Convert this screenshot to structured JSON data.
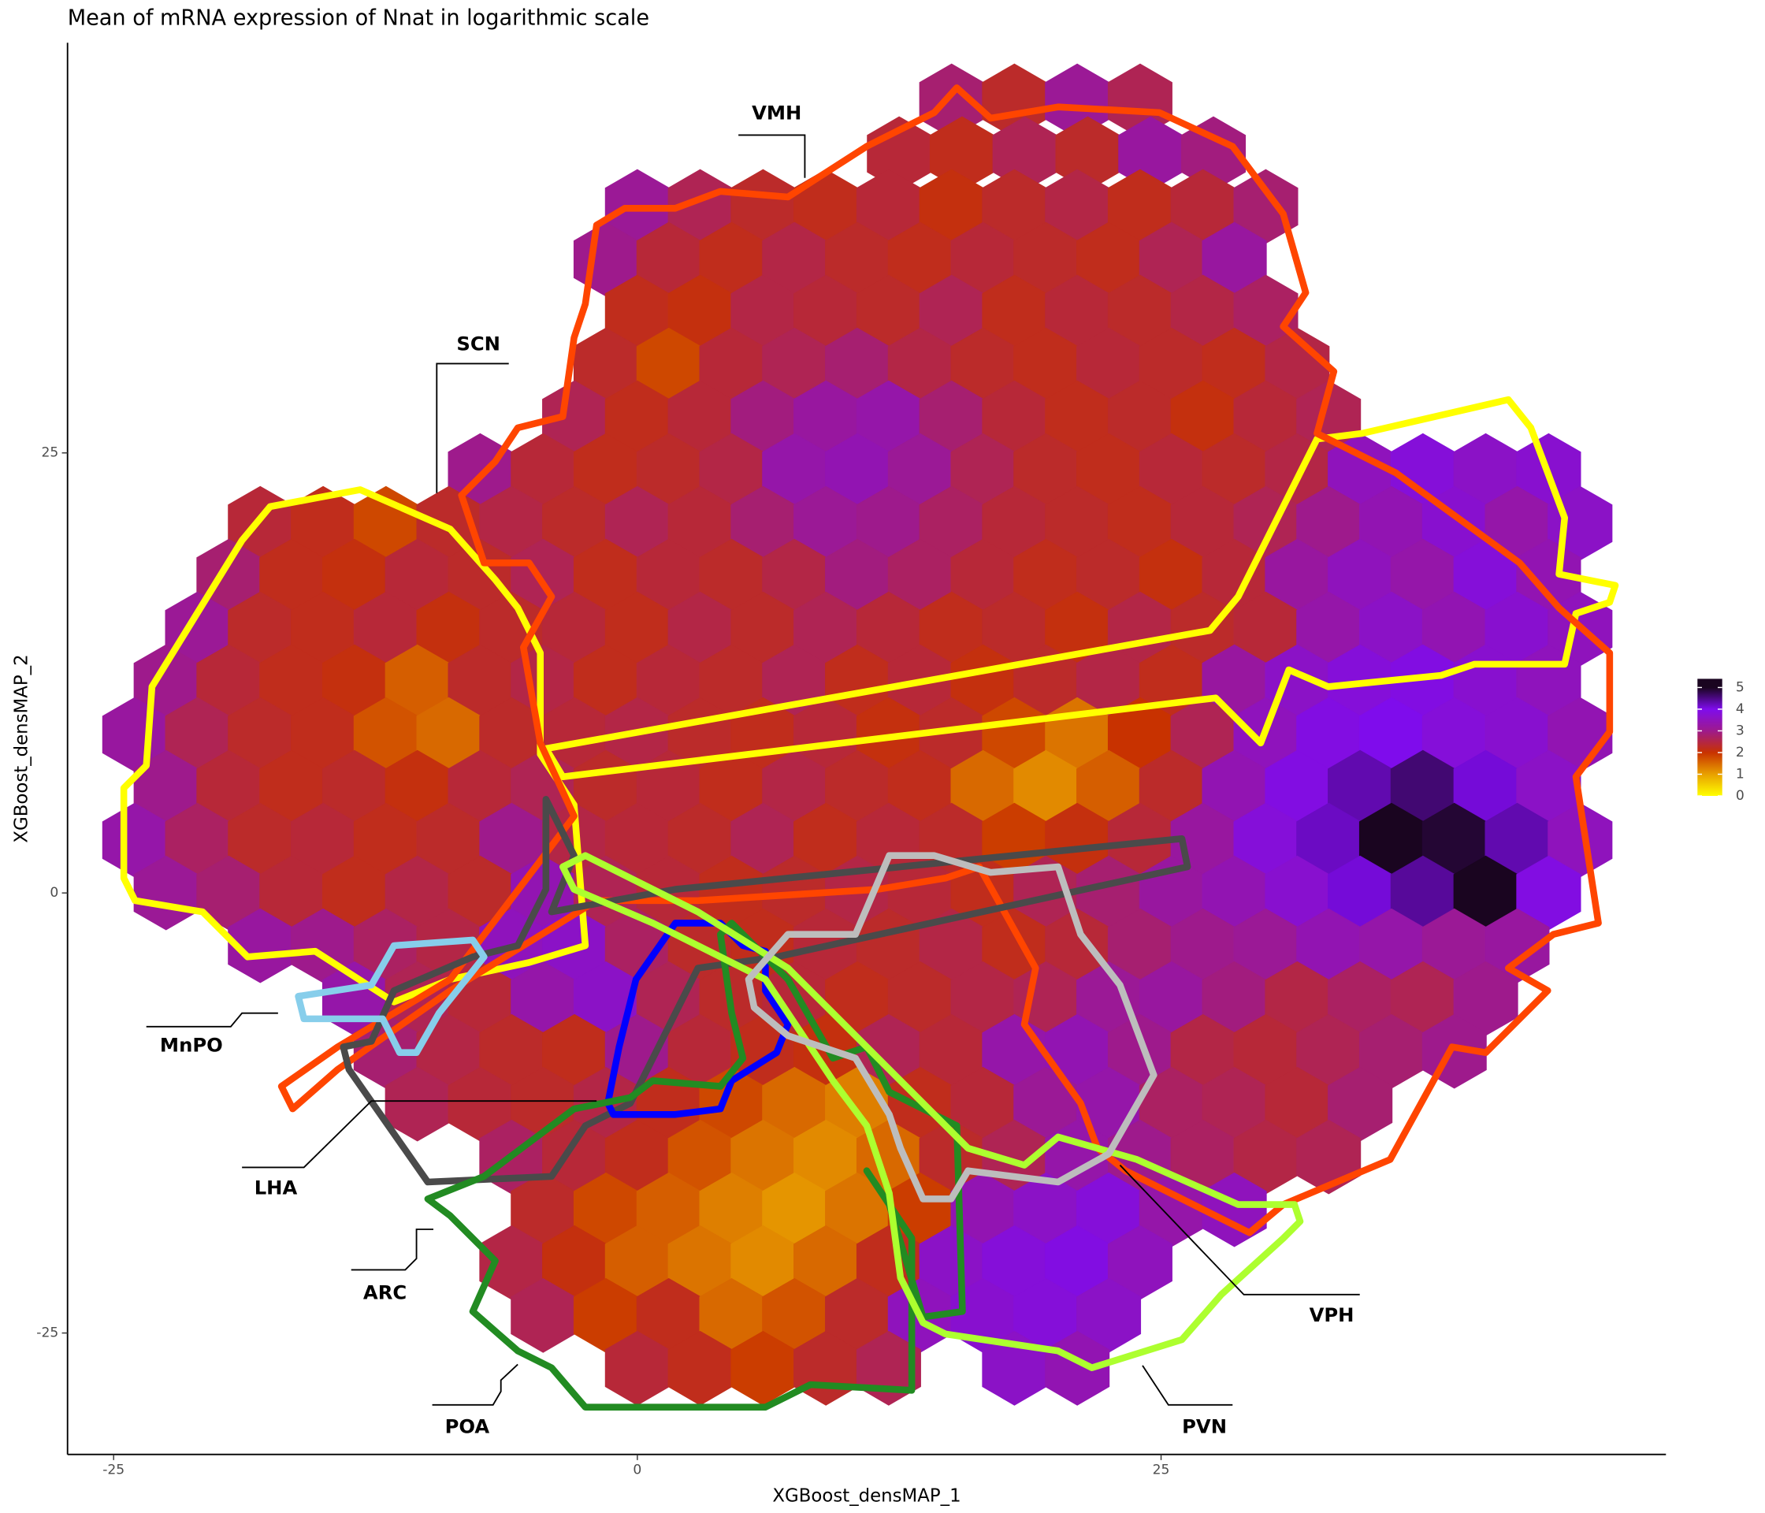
{
  "chart_data": {
    "type": "hexbin",
    "title": "Mean of mRNA expression of Nnat in logarithmic scale",
    "x_label": "XGBoost_densMAP_1",
    "y_label": "XGBoost_densMAP_2",
    "xlim": [
      -27.2,
      49.1
    ],
    "ylim": [
      -31.9,
      48.3
    ],
    "xticks": [
      -25,
      0,
      25
    ],
    "yticks": [
      -25,
      0,
      25
    ],
    "colorbar": {
      "lim": [
        0,
        5.4
      ],
      "ticks": [
        0,
        1,
        2,
        3,
        4,
        5
      ]
    },
    "colorscale": [
      {
        "value": 0,
        "color": "#ffff00"
      },
      {
        "value": 1,
        "color": "#e8a000"
      },
      {
        "value": 2,
        "color": "#c83200"
      },
      {
        "value": 3,
        "color": "#9e1a8c"
      },
      {
        "value": 4,
        "color": "#7f0cec"
      },
      {
        "value": 5,
        "color": "#1a0520"
      }
    ],
    "regions": [
      "VMH",
      "SCN",
      "MnPO",
      "LHA",
      "ARC",
      "POA",
      "VPH",
      "PVN"
    ],
    "rows": [
      {
        "y": 45,
        "x": [
          15,
          18,
          21,
          24
        ],
        "values": [
          2.8,
          2.3,
          3.1,
          2.6
        ]
      },
      {
        "y": 42,
        "x": [
          12.5,
          15.5,
          18.5,
          21.5,
          24.5,
          27.5
        ],
        "values": [
          2.4,
          2.2,
          2.6,
          2.3,
          3.2,
          2.9
        ]
      },
      {
        "y": 39,
        "x": [
          0,
          3,
          6,
          9,
          12,
          15,
          18,
          21,
          24,
          27,
          30
        ],
        "values": [
          3.1,
          2.6,
          2.3,
          2.2,
          2.4,
          2.1,
          2.3,
          2.5,
          2.2,
          2.4,
          2.8
        ]
      },
      {
        "y": 36,
        "x": [
          -1.5,
          1.5,
          4.5,
          7.5,
          10.5,
          13.5,
          16.5,
          19.5,
          22.5,
          25.5,
          28.5
        ],
        "values": [
          3,
          2.4,
          2.2,
          2.5,
          2.3,
          2.2,
          2.4,
          2.3,
          2.2,
          2.6,
          3.2
        ]
      },
      {
        "y": 33,
        "x": [
          0,
          3,
          6,
          9,
          12,
          15,
          18,
          21,
          24,
          27,
          30
        ],
        "values": [
          2.2,
          2.1,
          2.5,
          2.4,
          2.3,
          2.6,
          2.2,
          2.4,
          2.3,
          2.5,
          2.7
        ]
      },
      {
        "y": 30,
        "x": [
          -1.5,
          1.5,
          4.5,
          7.5,
          10.5,
          13.5,
          16.5,
          19.5,
          22.5,
          25.5,
          28.5,
          31.5
        ],
        "values": [
          2.3,
          1.8,
          2.4,
          2.6,
          2.8,
          2.5,
          2.3,
          2.2,
          2.4,
          2.3,
          2.2,
          2.5
        ]
      },
      {
        "y": 27,
        "x": [
          -3,
          0,
          3,
          6,
          9,
          12,
          15,
          18,
          21,
          24,
          27,
          30,
          33
        ],
        "values": [
          2.6,
          2.2,
          2.4,
          2.9,
          3.2,
          3.3,
          2.8,
          2.4,
          2.2,
          2.3,
          2.1,
          2.4,
          2.6
        ]
      },
      {
        "y": 24,
        "x": [
          -7.5,
          -4.5,
          -1.5,
          1.5,
          4.5,
          7.5,
          10.5,
          13.5,
          16.5,
          19.5,
          22.5,
          25.5,
          28.5,
          31.5,
          34.5,
          37.5,
          40.5,
          43.5
        ],
        "values": [
          3,
          2.4,
          2.2,
          2.3,
          2.5,
          3.3,
          3.4,
          3.1,
          2.6,
          2.3,
          2.2,
          2.4,
          2.3,
          2.5,
          3.5,
          3.8,
          3.6,
          3.7
        ]
      },
      {
        "y": 21,
        "x": [
          -18,
          -15,
          -12,
          -9,
          -6,
          -3,
          0,
          3,
          6,
          9,
          12,
          15,
          18,
          21,
          24,
          27,
          30,
          33,
          36,
          39,
          42,
          45
        ],
        "values": [
          2.4,
          2.2,
          1.8,
          2.3,
          2.5,
          2.3,
          2.6,
          2.4,
          2.8,
          3.1,
          3,
          2.7,
          2.4,
          2.3,
          2.2,
          2.4,
          2.6,
          3,
          3.4,
          3.7,
          3.3,
          3.6
        ]
      },
      {
        "y": 18,
        "x": [
          -19.5,
          -16.5,
          -13.5,
          -10.5,
          -7.5,
          -4.5,
          -1.5,
          1.5,
          4.5,
          7.5,
          10.5,
          13.5,
          16.5,
          19.5,
          22.5,
          25.5,
          28.5,
          31.5,
          34.5,
          37.5,
          40.5,
          43.5
        ],
        "values": [
          2.8,
          2.2,
          2.1,
          2.4,
          2.3,
          2.6,
          2.2,
          2.4,
          2.3,
          2.5,
          2.9,
          2.7,
          2.4,
          2.2,
          2.3,
          2.1,
          2.4,
          3.2,
          3.5,
          3.3,
          3.8,
          3.4
        ]
      },
      {
        "y": 15,
        "x": [
          -21,
          -18,
          -15,
          -12,
          -9,
          -6,
          -3,
          0,
          3,
          6,
          9,
          12,
          15,
          18,
          21,
          24,
          27,
          30,
          33,
          36,
          39,
          42,
          45
        ],
        "values": [
          3.1,
          2.3,
          2.2,
          2.4,
          2.1,
          2.3,
          2.4,
          2.2,
          2.5,
          2.3,
          2.6,
          2.4,
          2.2,
          2.3,
          2.1,
          2.5,
          2.3,
          2.4,
          3.3,
          3.6,
          3.4,
          3.7,
          3.5
        ]
      },
      {
        "y": 12,
        "x": [
          -22.5,
          -19.5,
          -16.5,
          -13.5,
          -10.5,
          -7.5,
          -4.5,
          -1.5,
          1.5,
          4.5,
          7.5,
          10.5,
          13.5,
          16.5,
          19.5,
          22.5,
          25.5,
          28.5,
          31.5,
          34.5,
          37.5,
          40.5,
          43.5
        ],
        "values": [
          3,
          2.4,
          2.2,
          2.1,
          1.6,
          2.3,
          2.5,
          2.2,
          2.4,
          2.3,
          2.6,
          2.2,
          2.4,
          2.1,
          2.3,
          2.5,
          2.2,
          3.2,
          3.6,
          3.8,
          3.9,
          3.7,
          3.5
        ]
      },
      {
        "y": 9,
        "x": [
          -24,
          -21,
          -18,
          -15,
          -12,
          -9,
          -6,
          -3,
          0,
          3,
          6,
          9,
          12,
          15,
          18,
          21,
          24,
          27,
          30,
          33,
          36,
          39,
          42,
          45
        ],
        "values": [
          3.2,
          2.6,
          2.3,
          2.2,
          1.7,
          1.5,
          2.3,
          2.4,
          2.5,
          2.3,
          2.2,
          2.4,
          2.1,
          2.3,
          1.8,
          1.4,
          2,
          2.6,
          3.5,
          3.9,
          4,
          3.8,
          3.7,
          3.4
        ]
      },
      {
        "y": 6,
        "x": [
          -22.5,
          -19.5,
          -16.5,
          -13.5,
          -10.5,
          -7.5,
          -4.5,
          -1.5,
          1.5,
          4.5,
          7.5,
          10.5,
          13.5,
          16.5,
          19.5,
          22.5,
          25.5,
          28.5,
          31.5,
          34.5,
          37.5,
          40.5,
          43.5
        ],
        "values": [
          3,
          2.4,
          2.2,
          2.3,
          2.1,
          2.4,
          2.6,
          2.3,
          2.4,
          2.2,
          2.5,
          2.3,
          2.2,
          1.5,
          1.2,
          1.6,
          2.3,
          3.4,
          3.9,
          4.3,
          4.6,
          4.1,
          3.6
        ]
      },
      {
        "y": 3,
        "x": [
          -24,
          -21,
          -18,
          -15,
          -12,
          -9,
          -6,
          -3,
          0,
          3,
          6,
          9,
          12,
          15,
          18,
          21,
          24,
          27,
          30,
          33,
          36,
          39,
          42,
          45
        ],
        "values": [
          3.3,
          2.7,
          2.3,
          2.4,
          2.2,
          2.3,
          3,
          2.5,
          2.4,
          2.3,
          2.6,
          2.2,
          2.4,
          2.3,
          1.9,
          2.1,
          2.4,
          3.2,
          3.8,
          4.2,
          5.1,
          4.9,
          4.3,
          3.5
        ]
      },
      {
        "y": 0,
        "x": [
          -22.5,
          -19.5,
          -16.5,
          -13.5,
          -10.5,
          -7.5,
          -4.5,
          -1.5,
          1.5,
          4.5,
          7.5,
          10.5,
          13.5,
          16.5,
          19.5,
          22.5,
          25.5,
          28.5,
          31.5,
          34.5,
          37.5,
          40.5,
          43.5
        ],
        "values": [
          3.1,
          2.8,
          2.4,
          2.2,
          2.5,
          2.3,
          3.4,
          2.6,
          2.4,
          2.2,
          2.3,
          2.5,
          2.4,
          2.2,
          2.6,
          2.8,
          3.2,
          3.4,
          3.7,
          4.1,
          4.4,
          5,
          3.9
        ]
      },
      {
        "y": -3,
        "x": [
          -18,
          -15,
          -12,
          -9,
          -6,
          -3,
          0,
          3,
          6,
          9,
          12,
          15,
          18,
          21,
          24,
          27,
          30,
          33,
          36,
          39,
          42
        ],
        "values": [
          3.2,
          3,
          2.7,
          2.5,
          3.5,
          3.6,
          2.7,
          2.3,
          2.2,
          2.4,
          2.3,
          2.5,
          2.2,
          2.4,
          2.8,
          3,
          3.1,
          3.4,
          3.3,
          3.1,
          3.2
        ]
      },
      {
        "y": -6,
        "x": [
          -13.5,
          -10.5,
          -7.5,
          -4.5,
          -1.5,
          1.5,
          4.5,
          7.5,
          10.5,
          13.5,
          16.5,
          19.5,
          22.5,
          25.5,
          28.5,
          31.5,
          34.5,
          37.5,
          40.5
        ],
        "values": [
          3.3,
          2.6,
          2.4,
          3.3,
          3.6,
          2.6,
          2.3,
          2.4,
          2.2,
          2.3,
          2.5,
          2.6,
          3.1,
          3.2,
          2.9,
          2.5,
          2.7,
          2.6,
          3
        ]
      },
      {
        "y": -9,
        "x": [
          -12,
          -9,
          -6,
          -3,
          0,
          3,
          6,
          9,
          12,
          15,
          18,
          21,
          24,
          27,
          30,
          33,
          36,
          39
        ],
        "values": [
          2.8,
          2.5,
          2.3,
          2.2,
          3,
          2.4,
          2.2,
          2.1,
          2.6,
          2.4,
          3.3,
          3.4,
          3,
          2.5,
          2.4,
          2.6,
          2.8,
          3
        ]
      },
      {
        "y": -12,
        "x": [
          -10.5,
          -7.5,
          -4.5,
          -1.5,
          1.5,
          4.5,
          7.5,
          10.5,
          13.5,
          16.5,
          19.5,
          22.5,
          25.5,
          28.5,
          31.5,
          34.5
        ],
        "values": [
          2.6,
          2.4,
          2.3,
          2.5,
          2.2,
          1.8,
          1.5,
          1.3,
          2.2,
          2.4,
          3.1,
          3.3,
          2.7,
          2.6,
          2.4,
          2.8
        ]
      },
      {
        "y": -15,
        "x": [
          -6,
          -3,
          0,
          3,
          6,
          9,
          12,
          15,
          18,
          21,
          24,
          27,
          30,
          33
        ],
        "values": [
          2.7,
          2.4,
          2.2,
          1.7,
          1.4,
          1.2,
          1.5,
          2.3,
          2.6,
          3.3,
          3,
          2.7,
          2.5,
          2.6
        ]
      },
      {
        "y": -18,
        "x": [
          -4.5,
          -1.5,
          1.5,
          4.5,
          7.5,
          10.5,
          13.5,
          16.5,
          19.5,
          22.5,
          25.5,
          28.5
        ],
        "values": [
          2.3,
          1.8,
          1.6,
          1.3,
          1.1,
          1.4,
          1.9,
          3.4,
          3.6,
          3.8,
          3.3,
          3.5
        ]
      },
      {
        "y": -21,
        "x": [
          -6,
          -3,
          0,
          3,
          6,
          9,
          12,
          15,
          18,
          21,
          24
        ],
        "values": [
          2.5,
          2.1,
          1.6,
          1.4,
          1.2,
          1.5,
          2.2,
          3.6,
          3.8,
          3.9,
          3.5
        ]
      },
      {
        "y": -24,
        "x": [
          -4.5,
          -1.5,
          1.5,
          4.5,
          7.5,
          10.5,
          13.5,
          16.5,
          19.5,
          22.5
        ],
        "values": [
          2.6,
          1.9,
          2.2,
          1.5,
          1.7,
          2.3,
          3.5,
          3.7,
          3.8,
          3.6
        ]
      },
      {
        "y": -27,
        "x": [
          0,
          3,
          6,
          9,
          12,
          18,
          21
        ],
        "values": [
          2.4,
          2.2,
          1.9,
          2.3,
          2.6,
          3.6,
          3.4
        ]
      }
    ]
  }
}
